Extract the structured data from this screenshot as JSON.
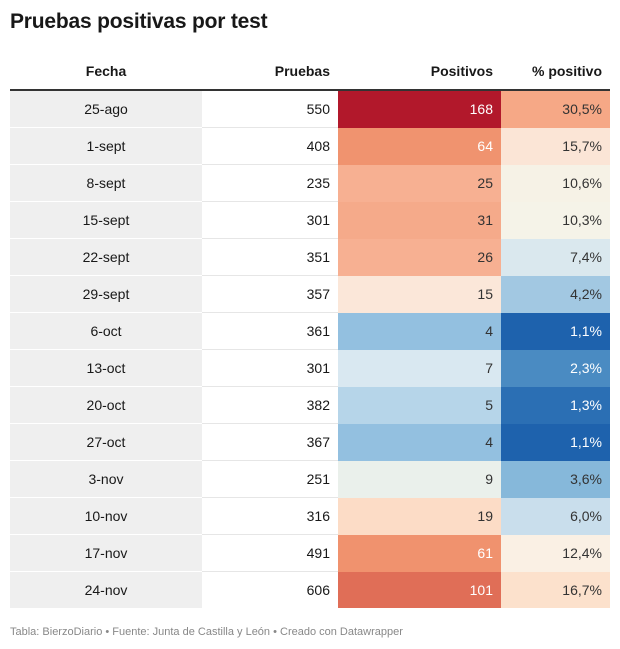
{
  "title": "Pruebas positivas por test",
  "headers": [
    "Fecha",
    "Pruebas",
    "Positivos",
    "% positivo"
  ],
  "rows": [
    {
      "fecha": "25-ago",
      "pruebas": "550",
      "positivos": "168",
      "pct": "30,5%",
      "pos_bg": "#b2182b",
      "pos_fg": "#ffffff",
      "pct_bg": "#f6a886",
      "pct_fg": "#333333"
    },
    {
      "fecha": "1-sept",
      "pruebas": "408",
      "positivos": "64",
      "pct": "15,7%",
      "pos_bg": "#f0936f",
      "pos_fg": "#ffffff",
      "pct_bg": "#fbe5d6",
      "pct_fg": "#333333"
    },
    {
      "fecha": "8-sept",
      "pruebas": "235",
      "positivos": "25",
      "pct": "10,6%",
      "pos_bg": "#f7b092",
      "pos_fg": "#333333",
      "pct_bg": "#f6f2e6",
      "pct_fg": "#333333"
    },
    {
      "fecha": "15-sept",
      "pruebas": "301",
      "positivos": "31",
      "pct": "10,3%",
      "pos_bg": "#f5aa8a",
      "pos_fg": "#333333",
      "pct_bg": "#f5f3e8",
      "pct_fg": "#333333"
    },
    {
      "fecha": "22-sept",
      "pruebas": "351",
      "positivos": "26",
      "pct": "7,4%",
      "pos_bg": "#f7b092",
      "pos_fg": "#333333",
      "pct_bg": "#dae8ee",
      "pct_fg": "#333333"
    },
    {
      "fecha": "29-sept",
      "pruebas": "357",
      "positivos": "15",
      "pct": "4,2%",
      "pos_bg": "#fbe7d9",
      "pos_fg": "#333333",
      "pct_bg": "#a2c8e2",
      "pct_fg": "#333333"
    },
    {
      "fecha": "6-oct",
      "pruebas": "361",
      "positivos": "4",
      "pct": "1,1%",
      "pos_bg": "#93c0e0",
      "pos_fg": "#333333",
      "pct_bg": "#1e62ad",
      "pct_fg": "#ffffff"
    },
    {
      "fecha": "13-oct",
      "pruebas": "301",
      "positivos": "7",
      "pct": "2,3%",
      "pos_bg": "#d9e8f1",
      "pos_fg": "#333333",
      "pct_bg": "#4a8bc2",
      "pct_fg": "#ffffff"
    },
    {
      "fecha": "20-oct",
      "pruebas": "382",
      "positivos": "5",
      "pct": "1,3%",
      "pos_bg": "#b6d5e9",
      "pos_fg": "#333333",
      "pct_bg": "#2b6fb4",
      "pct_fg": "#ffffff"
    },
    {
      "fecha": "27-oct",
      "pruebas": "367",
      "positivos": "4",
      "pct": "1,1%",
      "pos_bg": "#93c0e0",
      "pos_fg": "#333333",
      "pct_bg": "#1e62ad",
      "pct_fg": "#ffffff"
    },
    {
      "fecha": "3-nov",
      "pruebas": "251",
      "positivos": "9",
      "pct": "3,6%",
      "pos_bg": "#eaf0eb",
      "pos_fg": "#333333",
      "pct_bg": "#86b8da",
      "pct_fg": "#333333"
    },
    {
      "fecha": "10-nov",
      "pruebas": "316",
      "positivos": "19",
      "pct": "6,0%",
      "pos_bg": "#fcdcc6",
      "pos_fg": "#333333",
      "pct_bg": "#c9deec",
      "pct_fg": "#333333"
    },
    {
      "fecha": "17-nov",
      "pruebas": "491",
      "positivos": "61",
      "pct": "12,4%",
      "pos_bg": "#f0926e",
      "pos_fg": "#ffffff",
      "pct_bg": "#faf0e4",
      "pct_fg": "#333333"
    },
    {
      "fecha": "24-nov",
      "pruebas": "606",
      "positivos": "101",
      "pct": "16,7%",
      "pos_bg": "#e06e57",
      "pos_fg": "#ffffff",
      "pct_bg": "#fce1cc",
      "pct_fg": "#333333"
    }
  ],
  "footer": "Tabla: BierzoDiario • Fuente: Junta de Castilla y León • Creado con Datawrapper",
  "chart_data": {
    "type": "table",
    "title": "Pruebas positivas por test",
    "columns": [
      "Fecha",
      "Pruebas",
      "Positivos",
      "% positivo"
    ],
    "rows": [
      [
        "25-ago",
        550,
        168,
        30.5
      ],
      [
        "1-sept",
        408,
        64,
        15.7
      ],
      [
        "8-sept",
        235,
        25,
        10.6
      ],
      [
        "15-sept",
        301,
        31,
        10.3
      ],
      [
        "22-sept",
        351,
        26,
        7.4
      ],
      [
        "29-sept",
        357,
        15,
        4.2
      ],
      [
        "6-oct",
        361,
        4,
        1.1
      ],
      [
        "13-oct",
        301,
        7,
        2.3
      ],
      [
        "20-oct",
        382,
        5,
        1.3
      ],
      [
        "27-oct",
        367,
        4,
        1.1
      ],
      [
        "3-nov",
        251,
        9,
        3.6
      ],
      [
        "10-nov",
        316,
        19,
        6.0
      ],
      [
        "17-nov",
        491,
        61,
        12.4
      ],
      [
        "24-nov",
        606,
        101,
        16.7
      ]
    ],
    "heatmap_columns": [
      "Positivos",
      "% positivo"
    ],
    "color_scale": [
      "#1e62ad",
      "#f7f7f7",
      "#b2182b"
    ]
  }
}
